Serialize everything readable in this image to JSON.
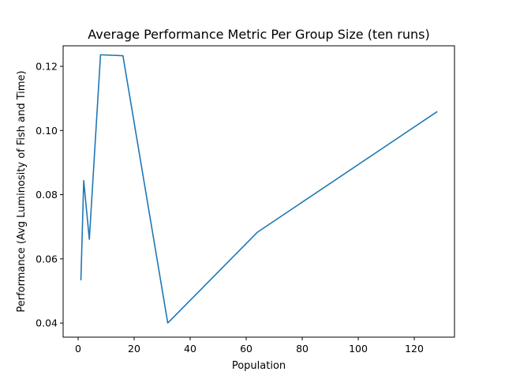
{
  "chart_data": {
    "type": "line",
    "title": "Average Performance Metric Per Group Size (ten runs)",
    "xlabel": "Population",
    "ylabel": "Performance (Avg Luminosity of Fish and Time)",
    "xlim": [
      -5.35,
      134.35
    ],
    "ylim": [
      0.0356,
      0.1264
    ],
    "xticks": [
      0,
      20,
      40,
      60,
      80,
      100,
      120
    ],
    "xtick_labels": [
      "0",
      "20",
      "40",
      "60",
      "80",
      "100",
      "120"
    ],
    "yticks": [
      0.04,
      0.06,
      0.08,
      0.1,
      0.12
    ],
    "ytick_labels": [
      "0.04",
      "0.06",
      "0.08",
      "0.10",
      "0.12"
    ],
    "grid": false,
    "series": [
      {
        "x": [
          1,
          2,
          4,
          8,
          16,
          32,
          64,
          128
        ],
        "y": [
          0.0535,
          0.0844,
          0.0661,
          0.1236,
          0.1233,
          0.04,
          0.0683,
          0.1058
        ],
        "color": "#1f77b4"
      }
    ]
  }
}
